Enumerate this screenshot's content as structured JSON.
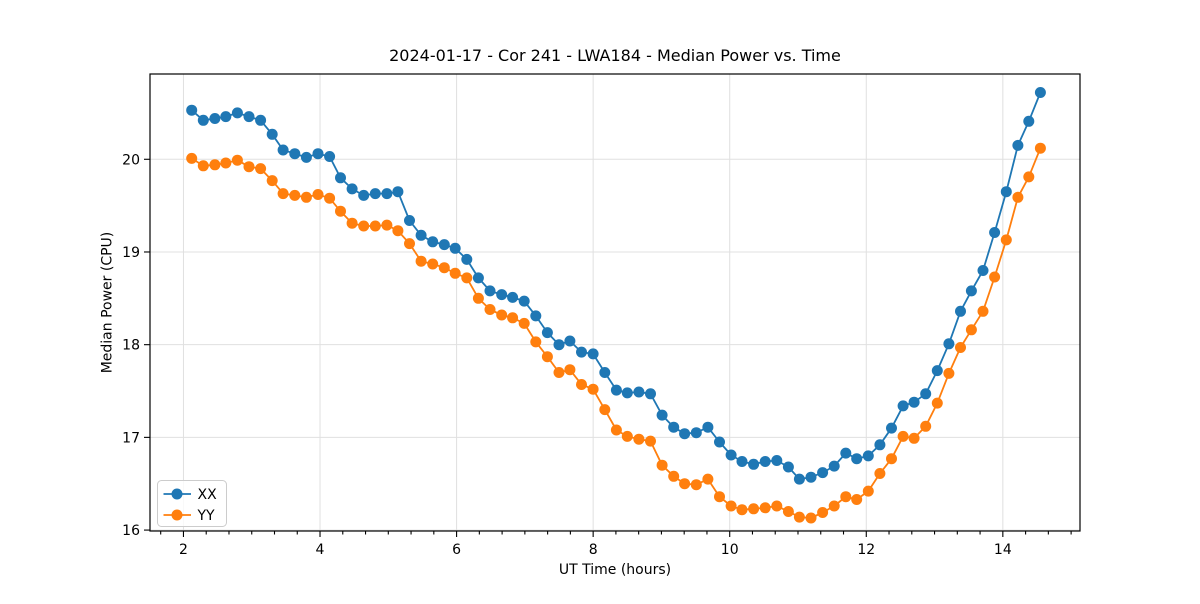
{
  "chart_data": {
    "type": "line",
    "title": "2024-01-17 - Cor 241 - LWA184 - Median Power vs. Time",
    "xlabel": "UT Time (hours)",
    "ylabel": "Median Power (CPU)",
    "xlim": [
      1.51,
      15.13
    ],
    "ylim": [
      15.99,
      20.92
    ],
    "x_ticks": [
      2,
      4,
      6,
      8,
      10,
      12,
      14
    ],
    "x_tick_labels": [
      "2",
      "4",
      "6",
      "8",
      "10",
      "12",
      "14"
    ],
    "x_minor_tick_step": 0.33333,
    "y_ticks": [
      16,
      17,
      18,
      19,
      20
    ],
    "y_tick_labels": [
      "16",
      "17",
      "18",
      "19",
      "20"
    ],
    "grid": true,
    "grid_color": "#e0e0e0",
    "spine_color": "#000000",
    "background_color": "#ffffff",
    "legend_position": "lower left",
    "marker": "o",
    "x": [
      2.12,
      2.29,
      2.46,
      2.62,
      2.79,
      2.96,
      3.13,
      3.3,
      3.46,
      3.63,
      3.8,
      3.97,
      4.14,
      4.3,
      4.47,
      4.64,
      4.81,
      4.98,
      5.14,
      5.31,
      5.48,
      5.65,
      5.82,
      5.98,
      6.15,
      6.32,
      6.49,
      6.66,
      6.82,
      6.99,
      7.16,
      7.33,
      7.5,
      7.66,
      7.83,
      8.0,
      8.17,
      8.34,
      8.5,
      8.67,
      8.84,
      9.01,
      9.18,
      9.34,
      9.51,
      9.68,
      9.85,
      10.02,
      10.18,
      10.35,
      10.52,
      10.69,
      10.86,
      11.02,
      11.19,
      11.36,
      11.53,
      11.7,
      11.86,
      12.03,
      12.2,
      12.37,
      12.54,
      12.7,
      12.87,
      13.04,
      13.21,
      13.38,
      13.54,
      13.71,
      13.88,
      14.05,
      14.22,
      14.38,
      14.55
    ],
    "series": [
      {
        "name": "XX",
        "color": "#1f77b4",
        "values": [
          20.53,
          20.42,
          20.44,
          20.46,
          20.5,
          20.46,
          20.42,
          20.27,
          20.1,
          20.06,
          20.02,
          20.06,
          20.03,
          19.8,
          19.68,
          19.61,
          19.63,
          19.63,
          19.65,
          19.34,
          19.18,
          19.11,
          19.08,
          19.04,
          18.92,
          18.72,
          18.58,
          18.54,
          18.51,
          18.47,
          18.31,
          18.13,
          18.0,
          18.04,
          17.92,
          17.9,
          17.7,
          17.51,
          17.48,
          17.49,
          17.47,
          17.24,
          17.11,
          17.04,
          17.05,
          17.11,
          16.95,
          16.81,
          16.74,
          16.71,
          16.74,
          16.75,
          16.68,
          16.55,
          16.57,
          16.62,
          16.69,
          16.83,
          16.77,
          16.8,
          16.92,
          17.1,
          17.34,
          17.38,
          17.47,
          17.72,
          18.01,
          18.36,
          18.58,
          18.8,
          19.21,
          19.65,
          20.15,
          20.41,
          20.72
        ]
      },
      {
        "name": "YY",
        "color": "#ff7f0e",
        "values": [
          20.01,
          19.93,
          19.94,
          19.96,
          19.99,
          19.92,
          19.9,
          19.77,
          19.63,
          19.61,
          19.59,
          19.62,
          19.58,
          19.44,
          19.31,
          19.28,
          19.28,
          19.29,
          19.23,
          19.09,
          18.9,
          18.87,
          18.83,
          18.77,
          18.72,
          18.5,
          18.38,
          18.32,
          18.29,
          18.23,
          18.03,
          17.87,
          17.7,
          17.73,
          17.57,
          17.52,
          17.3,
          17.08,
          17.01,
          16.98,
          16.96,
          16.7,
          16.58,
          16.5,
          16.49,
          16.55,
          16.36,
          16.26,
          16.22,
          16.23,
          16.24,
          16.26,
          16.2,
          16.14,
          16.13,
          16.19,
          16.26,
          16.36,
          16.33,
          16.42,
          16.61,
          16.77,
          17.01,
          16.99,
          17.12,
          17.37,
          17.69,
          17.97,
          18.16,
          18.36,
          18.73,
          19.13,
          19.59,
          19.81,
          20.12
        ]
      }
    ]
  }
}
